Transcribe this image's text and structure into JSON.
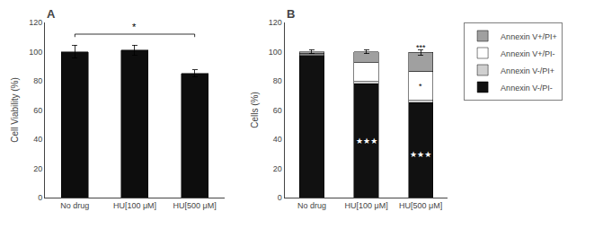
{
  "chart_data": [
    {
      "type": "bar",
      "title": "A",
      "categories": [
        "No drug",
        "HU[100 μM]",
        "HU[500 μM]"
      ],
      "values": [
        100,
        101,
        85
      ],
      "errors": [
        4.5,
        3.5,
        2.5
      ],
      "color": "#0d0d0d",
      "ylabel": "Cell Viability (%)",
      "ylim": [
        0,
        120
      ],
      "yticks": [
        0,
        20,
        40,
        60,
        80,
        100,
        120
      ],
      "grid": false,
      "annotations": [
        {
          "text": "*",
          "x": [
            "No drug",
            "HU[500 μM]"
          ],
          "y": 112
        }
      ]
    },
    {
      "type": "bar",
      "title": "B",
      "stacked": true,
      "categories": [
        "No drug",
        "HU[100 μM]",
        "HU[500 μM]"
      ],
      "series": [
        {
          "name": "Annexin V-/PI-",
          "color": "#111111",
          "values": [
            97.5,
            78,
            65
          ]
        },
        {
          "name": "Annexin V-/PI+",
          "color": "#d0d0d0",
          "values": [
            0.5,
            1.5,
            1.5
          ]
        },
        {
          "name": "Annexin V+/PI-",
          "color": "#ffffff",
          "values": [
            1.0,
            13,
            20
          ]
        },
        {
          "name": "Annexin V+/PI+",
          "color": "#a0a0a0",
          "values": [
            1.0,
            7.5,
            13
          ]
        }
      ],
      "total_errors": [
        1.5,
        1.5,
        2.0
      ],
      "ylabel": "Cells (%)",
      "ylim": [
        0,
        120
      ],
      "yticks": [
        0,
        20,
        40,
        60,
        80,
        100,
        120
      ],
      "grid": false,
      "legend": "right",
      "annotations": [
        {
          "text": "★★★",
          "x": "HU[100 μM]",
          "y": 39,
          "color": "#ffffff"
        },
        {
          "text": "★★★",
          "x": "HU[500 μM]",
          "y": 29.25,
          "color": "#ffffff"
        },
        {
          "text": "*",
          "x": "HU[500 μM]",
          "y": 76.5
        },
        {
          "text": "***",
          "x": "HU[500 μM]",
          "y": 103
        }
      ]
    }
  ]
}
